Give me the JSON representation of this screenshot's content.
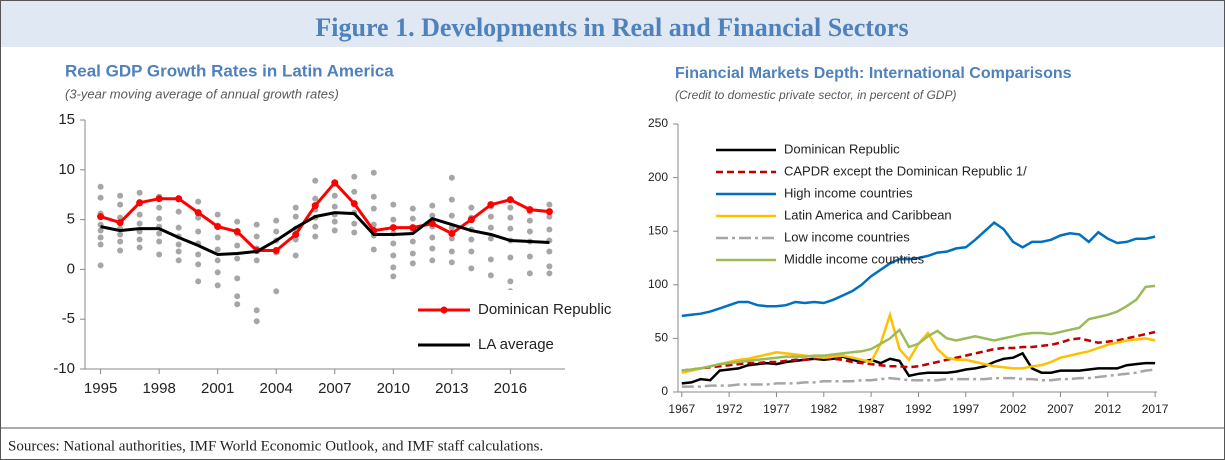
{
  "title": "Figure 1. Developments in Real and Financial Sectors",
  "footer": "Sources: National authorities, IMF World Economic Outlook, and IMF staff calculations.",
  "chart_data": [
    {
      "type": "line",
      "title": "Real GDP Growth Rates in Latin America",
      "subtitle": "(3-year moving average of annual growth rates)",
      "x": [
        1995,
        1996,
        1997,
        1998,
        1999,
        2000,
        2001,
        2002,
        2003,
        2004,
        2005,
        2006,
        2007,
        2008,
        2009,
        2010,
        2011,
        2012,
        2013,
        2014,
        2015,
        2016,
        2017,
        2018
      ],
      "xlim": [
        1994.2,
        2018.8
      ],
      "xticks": [
        1995,
        1998,
        2001,
        2004,
        2007,
        2010,
        2013,
        2016
      ],
      "ylim": [
        -10,
        15
      ],
      "yticks": [
        -10,
        -5,
        0,
        5,
        10,
        15
      ],
      "legend": "lower right",
      "dots": {
        "color": "#a6a6a6",
        "values": [
          [
            8.3,
            7.2,
            5.6,
            4.5,
            3.9,
            3.2,
            2.5,
            0.4
          ],
          [
            7.4,
            6.5,
            5.2,
            4.1,
            3.5,
            2.8,
            1.9
          ],
          [
            7.7,
            6.6,
            5.5,
            4.6,
            3.8,
            3.0,
            2.2
          ],
          [
            7.3,
            6.2,
            5.1,
            4.3,
            3.6,
            2.8,
            1.5
          ],
          [
            7.0,
            5.8,
            4.2,
            3.3,
            2.5,
            1.8,
            0.9
          ],
          [
            6.8,
            5.2,
            3.8,
            2.6,
            1.5,
            0.5,
            -1.2
          ],
          [
            5.5,
            4.4,
            3.2,
            2.0,
            0.9,
            -0.3,
            -1.6
          ],
          [
            4.8,
            3.6,
            2.4,
            1.1,
            -0.9,
            -2.7,
            -3.5
          ],
          [
            4.5,
            3.3,
            2.1,
            0.9,
            -4.1,
            -5.2
          ],
          [
            4.9,
            3.8,
            2.9,
            1.7,
            -2.2
          ],
          [
            6.2,
            5.3,
            4.1,
            3.0,
            1.4
          ],
          [
            8.9,
            7.1,
            6.0,
            5.2,
            4.3,
            3.3
          ],
          [
            8.6,
            7.4,
            6.3,
            5.5,
            4.8,
            3.9
          ],
          [
            9.3,
            7.8,
            6.6,
            5.7,
            4.6,
            3.7
          ],
          [
            9.7,
            7.3,
            6.1,
            4.5,
            3.4,
            2.0
          ],
          [
            6.5,
            5.0,
            3.6,
            2.6,
            1.4,
            0.2,
            -0.7
          ],
          [
            6.1,
            5.1,
            4.0,
            2.8,
            1.6,
            0.6
          ],
          [
            6.4,
            5.4,
            4.3,
            3.2,
            2.1,
            0.9
          ],
          [
            9.2,
            7.0,
            5.4,
            4.2,
            3.1,
            1.8,
            0.7
          ],
          [
            6.2,
            5.2,
            4.0,
            3.0,
            1.8,
            0.1
          ],
          [
            6.3,
            5.3,
            4.2,
            3.1,
            1.0,
            -0.6
          ],
          [
            6.2,
            5.2,
            4.1,
            2.9,
            1.2,
            -1.2,
            -2.2
          ],
          [
            5.8,
            4.9,
            3.8,
            2.8,
            1.3,
            -0.4
          ],
          [
            6.5,
            5.3,
            4.0,
            2.9,
            1.8,
            0.3,
            -0.4
          ]
        ]
      },
      "series": [
        {
          "name": "Dominican Republic",
          "color": "#ff0000",
          "marker": true,
          "values": [
            5.3,
            4.7,
            6.7,
            7.1,
            7.1,
            5.7,
            4.3,
            3.8,
            1.9,
            1.9,
            3.5,
            6.4,
            8.7,
            6.6,
            3.9,
            4.2,
            4.2,
            4.6,
            3.6,
            5.0,
            6.5,
            7.0,
            6.0,
            5.8
          ]
        },
        {
          "name": "LA average",
          "color": "#000000",
          "values": [
            4.3,
            3.9,
            4.1,
            4.1,
            3.2,
            2.4,
            1.5,
            1.6,
            1.8,
            2.9,
            4.2,
            5.3,
            5.7,
            5.6,
            3.5,
            3.5,
            3.6,
            5.1,
            4.5,
            3.9,
            3.5,
            2.9,
            2.8,
            2.7
          ]
        }
      ]
    },
    {
      "type": "line",
      "title": "Financial Markets Depth: International  Comparisons",
      "subtitle": "(Credit to domestic private sector, in percent of GDP)",
      "x": [
        1967,
        1968,
        1969,
        1970,
        1971,
        1972,
        1973,
        1974,
        1975,
        1976,
        1977,
        1978,
        1979,
        1980,
        1981,
        1982,
        1983,
        1984,
        1985,
        1986,
        1987,
        1988,
        1989,
        1990,
        1991,
        1992,
        1993,
        1994,
        1995,
        1996,
        1997,
        1998,
        1999,
        2000,
        2001,
        2002,
        2003,
        2004,
        2005,
        2006,
        2007,
        2008,
        2009,
        2010,
        2011,
        2012,
        2013,
        2014,
        2015,
        2016,
        2017
      ],
      "xlim": [
        1966.6,
        2017.2
      ],
      "xticks": [
        1967,
        1972,
        1977,
        1982,
        1987,
        1992,
        1997,
        2002,
        2007,
        2012,
        2017
      ],
      "ylim": [
        0,
        250
      ],
      "yticks": [
        0,
        50,
        100,
        150,
        200,
        250
      ],
      "legend": "upper left",
      "series": [
        {
          "name": "Dominican Republic",
          "color": "#000000",
          "style": "solid",
          "values": [
            8,
            9,
            12,
            11,
            20,
            21,
            22,
            25,
            26,
            27,
            26,
            28,
            29,
            30,
            31,
            30,
            31,
            33,
            30,
            28,
            30,
            27,
            31,
            29,
            15,
            17,
            18,
            18,
            18,
            19,
            21,
            22,
            24,
            28,
            31,
            32,
            36,
            22,
            18,
            18,
            20,
            20,
            20,
            21,
            22,
            22,
            22,
            25,
            26,
            27,
            27
          ]
        },
        {
          "name": "CAPDR except the Dominican Republic 1/",
          "color": "#c00000",
          "style": "dashed",
          "values": [
            20,
            21,
            22,
            23,
            24,
            25,
            26,
            27,
            27,
            28,
            28,
            29,
            30,
            30,
            31,
            32,
            31,
            30,
            28,
            27,
            26,
            25,
            24,
            24,
            23,
            24,
            26,
            28,
            30,
            32,
            34,
            36,
            38,
            40,
            41,
            41,
            42,
            42,
            43,
            44,
            46,
            49,
            50,
            48,
            46,
            47,
            48,
            50,
            52,
            54,
            56
          ]
        },
        {
          "name": "High income countries",
          "color": "#0070c0",
          "style": "solid",
          "values": [
            71,
            72,
            73,
            75,
            78,
            81,
            84,
            84,
            81,
            80,
            80,
            81,
            84,
            83,
            84,
            83,
            86,
            90,
            94,
            100,
            108,
            114,
            120,
            124,
            124,
            125,
            127,
            130,
            131,
            134,
            135,
            142,
            150,
            158,
            152,
            140,
            135,
            140,
            140,
            142,
            146,
            148,
            147,
            140,
            149,
            143,
            139,
            140,
            143,
            143,
            145
          ]
        },
        {
          "name": "Latin America and Caribbean",
          "color": "#ffc000",
          "style": "solid",
          "values": [
            18,
            20,
            22,
            24,
            26,
            28,
            30,
            31,
            33,
            35,
            37,
            36,
            35,
            34,
            33,
            32,
            33,
            34,
            32,
            30,
            28,
            45,
            72,
            40,
            30,
            45,
            55,
            40,
            32,
            30,
            30,
            28,
            26,
            24,
            23,
            22,
            22,
            24,
            25,
            28,
            32,
            34,
            36,
            38,
            41,
            44,
            46,
            48,
            49,
            50,
            48
          ]
        },
        {
          "name": "Low income countries",
          "color": "#a6a6a6",
          "style": "dashdot",
          "values": [
            5,
            5,
            5,
            6,
            6,
            6,
            7,
            7,
            7,
            7,
            8,
            8,
            8,
            9,
            9,
            10,
            10,
            10,
            10,
            11,
            11,
            12,
            13,
            12,
            11,
            11,
            11,
            11,
            12,
            12,
            12,
            12,
            12,
            13,
            13,
            13,
            12,
            12,
            11,
            11,
            12,
            12,
            13,
            13,
            14,
            15,
            16,
            17,
            18,
            20,
            21
          ]
        },
        {
          "name": "Middle income countries",
          "color": "#9bbb59",
          "style": "solid",
          "values": [
            20,
            21,
            22,
            24,
            26,
            27,
            28,
            29,
            30,
            31,
            32,
            33,
            33,
            33,
            34,
            34,
            35,
            36,
            37,
            38,
            40,
            45,
            50,
            58,
            42,
            45,
            52,
            57,
            50,
            48,
            50,
            52,
            50,
            48,
            50,
            52,
            54,
            55,
            55,
            54,
            56,
            58,
            60,
            68,
            70,
            72,
            75,
            80,
            86,
            98,
            99
          ]
        }
      ]
    }
  ]
}
